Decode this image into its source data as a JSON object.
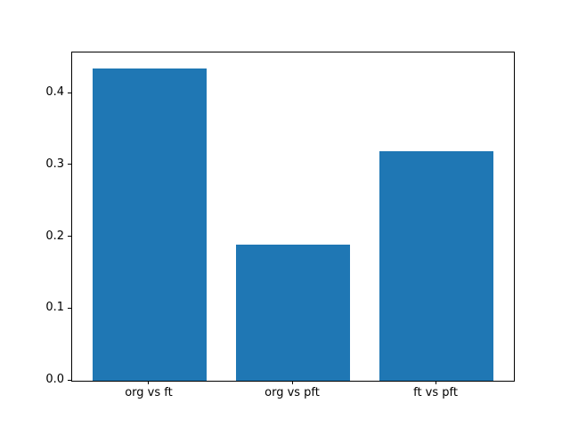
{
  "figure": {
    "background": "#ffffff"
  },
  "chart_data": {
    "type": "bar",
    "title": "",
    "xlabel": "",
    "ylabel": "",
    "categories": [
      "org vs ft",
      "org vs pft",
      "ft vs pft"
    ],
    "values": [
      0.435,
      0.19,
      0.32
    ],
    "bar_color": "#1f77b4",
    "bar_width": 0.8,
    "ylim": [
      0,
      0.457
    ],
    "xlim": [
      -0.54,
      2.54
    ],
    "yticks": [
      0.0,
      0.1,
      0.2,
      0.3,
      0.4
    ],
    "ytick_labels": [
      "0.0",
      "0.1",
      "0.2",
      "0.3",
      "0.4"
    ],
    "grid": false,
    "legend": null
  }
}
